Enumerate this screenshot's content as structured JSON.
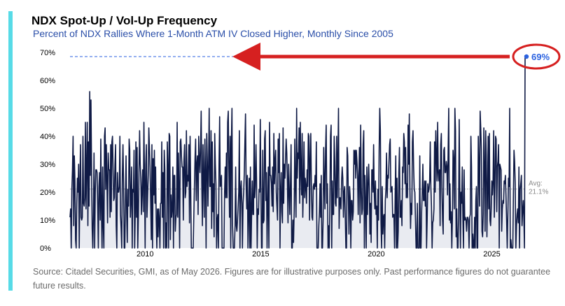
{
  "title": "NDX Spot-Up / Vol-Up Frequency",
  "subtitle": "Percent of NDX Rallies Where 1-Month ATM IV Closed Higher, Monthly Since 2005",
  "source_note": "Source: Citadel Securities, GMI, as of May 2026. Figures are for illustrative purposes only. Past performance figures do not guarantee future results.",
  "colors": {
    "accent_bar": "#57dbe7",
    "line": "#0f1a45",
    "area_fill": "#e9ebf1",
    "reference": "#2b62e0",
    "arrow": "#d62020",
    "avg_line": "#9a9a9a",
    "subtitle": "#2a4ea8"
  },
  "chart_data": {
    "type": "area",
    "title": "NDX Spot-Up / Vol-Up Frequency",
    "subtitle": "Percent of NDX Rallies Where 1-Month ATM IV Closed Higher, Monthly Since 2005",
    "xlabel": "",
    "ylabel": "",
    "frequency": "monthly",
    "start_year": 2006.75,
    "xlim": [
      2006.75,
      2026.5
    ],
    "ylim": [
      0,
      70
    ],
    "yticks": [
      0,
      10,
      20,
      30,
      40,
      50,
      60,
      70
    ],
    "ytick_labels": [
      "0%",
      "10%",
      "20%",
      "30%",
      "40%",
      "50%",
      "60%",
      "70%"
    ],
    "xticks": [
      2010,
      2015,
      2020,
      2025
    ],
    "xtick_labels": [
      "2010",
      "2015",
      "2020",
      "2025"
    ],
    "grid": false,
    "average": {
      "value": 21.1,
      "label": "Avg:",
      "value_label": "21.1%"
    },
    "last_point": {
      "value": 69,
      "label": "69%"
    },
    "annotation": "red arrow pointing from the latest 69% reading back toward the 70% level",
    "series": [
      {
        "values": [
          11,
          14,
          0,
          21,
          28,
          40,
          8,
          33,
          24,
          3,
          0,
          16,
          25,
          20,
          30,
          0,
          22,
          37,
          11,
          10,
          11,
          40,
          16,
          15,
          18,
          45,
          14,
          29,
          45,
          8,
          38,
          15,
          56,
          26,
          53,
          29,
          7,
          0,
          12,
          34,
          0,
          20,
          28,
          28,
          27,
          15,
          0,
          22,
          27,
          10,
          39,
          14,
          0,
          29,
          8,
          0,
          40,
          43,
          21,
          37,
          24,
          9,
          34,
          28,
          28,
          11,
          37,
          13,
          38,
          40,
          28,
          17,
          18,
          30,
          37,
          8,
          0,
          27,
          20,
          20,
          22,
          40,
          12,
          7,
          0,
          26,
          37,
          24,
          0,
          0,
          17,
          33,
          13,
          2,
          21,
          15,
          39,
          35,
          11,
          18,
          29,
          0,
          21,
          20,
          35,
          0,
          13,
          38,
          11,
          36,
          0,
          11,
          28,
          42,
          30,
          25,
          12,
          21,
          28,
          13,
          45,
          24,
          0,
          30,
          37,
          11,
          19,
          26,
          43,
          36,
          29,
          17,
          3,
          37,
          0,
          32,
          19,
          35,
          16,
          29,
          10,
          0,
          14,
          4,
          14,
          10,
          0,
          16,
          16,
          38,
          11,
          27,
          0,
          35,
          28,
          0,
          9,
          0,
          38,
          29,
          0,
          41,
          40,
          3,
          19,
          11,
          14,
          29,
          0,
          26,
          26,
          6,
          11,
          12,
          45,
          11,
          34,
          21,
          0,
          38,
          39,
          33,
          29,
          29,
          10,
          31,
          37,
          18,
          20,
          42,
          22,
          26,
          24,
          37,
          9,
          40,
          21,
          0,
          0,
          0,
          0,
          11,
          22,
          32,
          39,
          17,
          30,
          33,
          12,
          40,
          32,
          27,
          36,
          49,
          23,
          8,
          37,
          25,
          11,
          39,
          26,
          0,
          41,
          31,
          15,
          30,
          50,
          22,
          22,
          42,
          7,
          38,
          13,
          23,
          4,
          41,
          30,
          23,
          0,
          10,
          12,
          0,
          30,
          47,
          22,
          23,
          26,
          0,
          0,
          0,
          0,
          20,
          29,
          18,
          34,
          18,
          45,
          49,
          28,
          11,
          40,
          0,
          38,
          50,
          8,
          0,
          0,
          0,
          8,
          29,
          8,
          6,
          10,
          15,
          20,
          42,
          0,
          21,
          24,
          16,
          0,
          16,
          20,
          27,
          38,
          48,
          23,
          14,
          26,
          0,
          12,
          25,
          0,
          29,
          0,
          13,
          24,
          12,
          12,
          44,
          18,
          22,
          37,
          24,
          0,
          14,
          12,
          21,
          20,
          46,
          22,
          0,
          0,
          35,
          9,
          10,
          39,
          42,
          17,
          27,
          0,
          15,
          29,
          0,
          45,
          26,
          26,
          23,
          15,
          29,
          13,
          41,
          23,
          31,
          35,
          20,
          15,
          10,
          39,
          27,
          41,
          0,
          20,
          27,
          13,
          9,
          43,
          16,
          30,
          25,
          32,
          39,
          34,
          24,
          9,
          30,
          21,
          12,
          23,
          37,
          0,
          0,
          10,
          2,
          13,
          39,
          22,
          11,
          50,
          25,
          34,
          32,
          43,
          16,
          45,
          27,
          19,
          41,
          11,
          22,
          38,
          18,
          25,
          22,
          16,
          28,
          22,
          41,
          40,
          10,
          31,
          41,
          22,
          11,
          10,
          22,
          23,
          21,
          26,
          22,
          38,
          0,
          0,
          0,
          8,
          13,
          23,
          11,
          26,
          0,
          0,
          10,
          36,
          24,
          14,
          35,
          44,
          16,
          23,
          0,
          8,
          0,
          17,
          40,
          44,
          0,
          24,
          12,
          12,
          40,
          31,
          16,
          15,
          40,
          18,
          32,
          50,
          7,
          18,
          18,
          14,
          24,
          29,
          25,
          11,
          20,
          22,
          11,
          0,
          0,
          36,
          33,
          18,
          5,
          22,
          18,
          0,
          17,
          17,
          10,
          13,
          35,
          30,
          35,
          25,
          35,
          31,
          26,
          12,
          26,
          36,
          9,
          44,
          21,
          12,
          14,
          37,
          42,
          0,
          26,
          16,
          0,
          29,
          12,
          22,
          30,
          22,
          5,
          16,
          2,
          28,
          28,
          20,
          37,
          20,
          14,
          24,
          12,
          15,
          0,
          21,
          10,
          35,
          50,
          42,
          9,
          0,
          22,
          5,
          11,
          12,
          0,
          17,
          21,
          34,
          18,
          26,
          25,
          31,
          37,
          39,
          20,
          21,
          22,
          11,
          12,
          12,
          0,
          19,
          33,
          0,
          25,
          0,
          6,
          27,
          36,
          11,
          11,
          17,
          8,
          29,
          27,
          41,
          38,
          23,
          36,
          18,
          23,
          18,
          44,
          30,
          48,
          21,
          7,
          16,
          12,
          38,
          42,
          29,
          21,
          20,
          10,
          0,
          0,
          16,
          0,
          0,
          0,
          33,
          0,
          0,
          13,
          20,
          30,
          17,
          17,
          24,
          15,
          24,
          0,
          10,
          23,
          20,
          21,
          24,
          38,
          22,
          15,
          0,
          9,
          10,
          14,
          38,
          20,
          42,
          33,
          24,
          45,
          27,
          24,
          28,
          8,
          37,
          41,
          21,
          10,
          5,
          35,
          36,
          27,
          27,
          31,
          29,
          19,
          34,
          50,
          10,
          23,
          9,
          13,
          0,
          11,
          35,
          31,
          14,
          50,
          42,
          4,
          14,
          0,
          0,
          11,
          46,
          22,
          0,
          20,
          16,
          29,
          11,
          0,
          28,
          10,
          11,
          10,
          6,
          11,
          11,
          10,
          0,
          11,
          12,
          40,
          29,
          0,
          5,
          0,
          0,
          11,
          0,
          17,
          22,
          0,
          0,
          40,
          29,
          15,
          49,
          43,
          35,
          6,
          4,
          12,
          43,
          29,
          6,
          42,
          33,
          4,
          20,
          40,
          14,
          41,
          10,
          8,
          14,
          24,
          19,
          24,
          42,
          11,
          22,
          40,
          39,
          13,
          29,
          31,
          37,
          0,
          30,
          29,
          28,
          6,
          14,
          17,
          16,
          24,
          23,
          26,
          19,
          10,
          0,
          12,
          25,
          22,
          50,
          0,
          3,
          0,
          0,
          0,
          19,
          35,
          31,
          23,
          0,
          8,
          12,
          14,
          9,
          29,
          0,
          21,
          23,
          26,
          8,
          13,
          17,
          11,
          0,
          69
        ]
      }
    ]
  }
}
